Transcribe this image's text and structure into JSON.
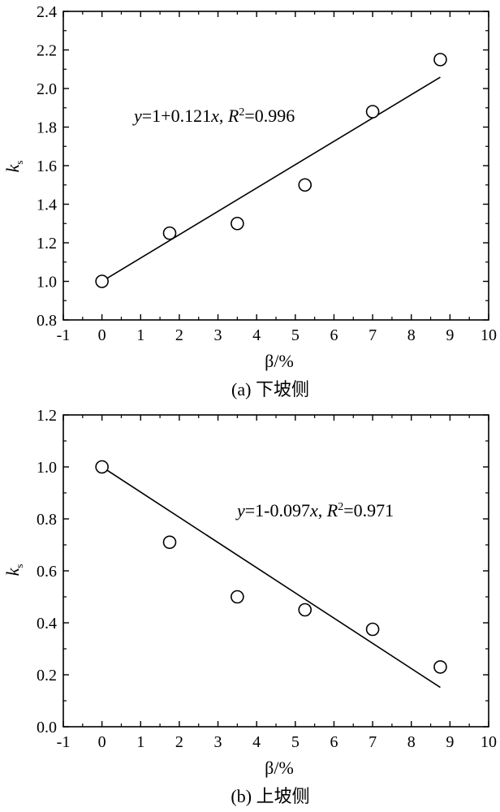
{
  "chart_data": [
    {
      "type": "scatter",
      "caption": "(a) 下坡侧",
      "xlabel": "β/%",
      "ylabel": "ks",
      "xlim": [
        -1,
        10
      ],
      "ylim": [
        0.8,
        2.4
      ],
      "xticks": [
        -1,
        0,
        1,
        2,
        3,
        4,
        5,
        6,
        7,
        8,
        9,
        10
      ],
      "yticks": [
        0.8,
        1.0,
        1.2,
        1.4,
        1.6,
        1.8,
        2.0,
        2.2,
        2.4
      ],
      "ytick_labels": [
        "0.8",
        "1.0",
        "1.2",
        "1.4",
        "1.6",
        "1.8",
        "2.0",
        "2.2",
        "2.4"
      ],
      "points": [
        {
          "x": 0,
          "y": 1.0
        },
        {
          "x": 1.75,
          "y": 1.25
        },
        {
          "x": 3.5,
          "y": 1.3
        },
        {
          "x": 5.25,
          "y": 1.5
        },
        {
          "x": 7.0,
          "y": 1.88
        },
        {
          "x": 8.75,
          "y": 2.15
        }
      ],
      "fit": {
        "intercept": 1,
        "slope": 0.121,
        "x_start": 0,
        "x_end": 8.75
      },
      "annotation": {
        "y": "y",
        "eq": "=1+0.121",
        "x": "x",
        "sep": ",  ",
        "R": "R",
        "sup": "2",
        "r2": "=0.996"
      }
    },
    {
      "type": "scatter",
      "caption": "(b) 上坡侧",
      "xlabel": "β/%",
      "ylabel": "ks",
      "xlim": [
        -1,
        10
      ],
      "ylim": [
        0.0,
        1.2
      ],
      "xticks": [
        -1,
        0,
        1,
        2,
        3,
        4,
        5,
        6,
        7,
        8,
        9,
        10
      ],
      "yticks": [
        0.0,
        0.2,
        0.4,
        0.6,
        0.8,
        1.0,
        1.2
      ],
      "ytick_labels": [
        "0.0",
        "0.2",
        "0.4",
        "0.6",
        "0.8",
        "1.0",
        "1.2"
      ],
      "points": [
        {
          "x": 0,
          "y": 1.0
        },
        {
          "x": 1.75,
          "y": 0.71
        },
        {
          "x": 3.5,
          "y": 0.5
        },
        {
          "x": 5.25,
          "y": 0.45
        },
        {
          "x": 7.0,
          "y": 0.375
        },
        {
          "x": 8.75,
          "y": 0.23
        }
      ],
      "fit": {
        "intercept": 1,
        "slope": -0.097,
        "x_start": 0,
        "x_end": 8.75
      },
      "annotation": {
        "y": "y",
        "eq": "=1-0.097",
        "x": "x",
        "sep": ", ",
        "R": "R",
        "sup": "2",
        "r2": "=0.971"
      }
    }
  ]
}
